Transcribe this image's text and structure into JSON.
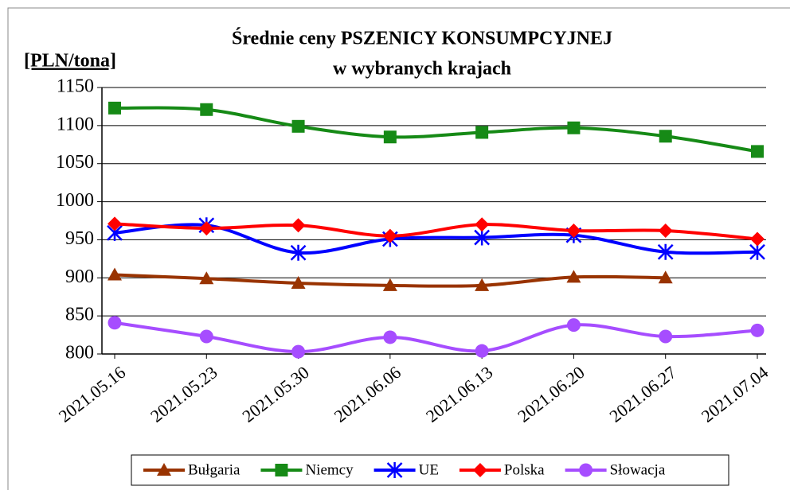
{
  "chart_data": {
    "type": "line",
    "title": [
      "Średnie ceny PSZENICY  KONSUMPCYJNEJ",
      "w wybranych krajach"
    ],
    "y_label": "[PLN/tona]",
    "categories": [
      "2021.05.16",
      "2021.05.23",
      "2021.05.30",
      "2021.06.06",
      "2021.06.13",
      "2021.06.20",
      "2021.06.27",
      "2021.07.04"
    ],
    "series": [
      {
        "name": "Bułgaria",
        "color": "#993300",
        "marker": "triangle",
        "values": [
          904,
          899,
          893,
          890,
          890,
          901,
          900,
          null
        ]
      },
      {
        "name": "Niemcy",
        "color": "#168a16",
        "marker": "square",
        "values": [
          1123,
          1121,
          1099,
          1085,
          1091,
          1097,
          1086,
          1066
        ]
      },
      {
        "name": "UE",
        "color": "#0000ff",
        "marker": "star",
        "values": [
          959,
          969,
          933,
          951,
          953,
          956,
          934,
          934
        ]
      },
      {
        "name": "Polska",
        "color": "#ff0000",
        "marker": "diamond",
        "values": [
          971,
          965,
          969,
          955,
          970,
          962,
          962,
          951
        ]
      },
      {
        "name": "Słowacja",
        "color": "#a64dff",
        "marker": "circle",
        "values": [
          841,
          823,
          803,
          822,
          804,
          838,
          823,
          831
        ]
      }
    ],
    "ylim": [
      800,
      1150
    ],
    "yticks": [
      800,
      850,
      900,
      950,
      1000,
      1050,
      1100,
      1150
    ],
    "grid": true,
    "legend": "bottom"
  }
}
